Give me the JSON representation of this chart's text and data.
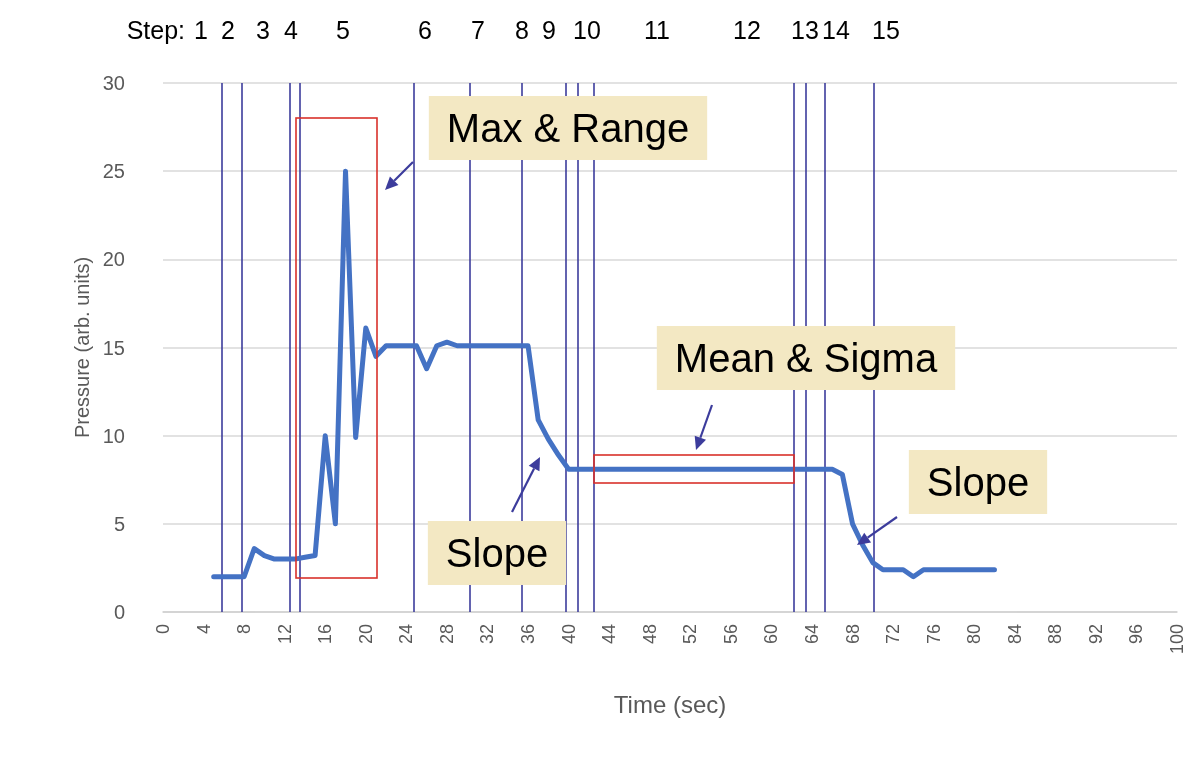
{
  "chart_data": {
    "type": "line",
    "xlabel": "Time (sec)",
    "ylabel": "Pressure (arb. units)",
    "xlim": [
      0,
      100
    ],
    "xticks": [
      0,
      4,
      8,
      12,
      16,
      20,
      24,
      28,
      32,
      36,
      40,
      44,
      48,
      52,
      56,
      60,
      64,
      68,
      72,
      76,
      80,
      84,
      88,
      92,
      96,
      100
    ],
    "ylim": [
      0,
      30
    ],
    "yticks": [
      0,
      5,
      10,
      15,
      20,
      25,
      30
    ],
    "grid": "y",
    "marker": "none",
    "line_style": "solid",
    "series": [
      {
        "color": "#4472c4",
        "x": [
          5,
          6,
          7,
          8,
          9,
          10,
          11,
          12,
          13,
          14,
          15,
          16,
          17,
          18,
          19,
          20,
          21,
          22,
          23,
          24,
          25,
          26,
          27,
          28,
          29,
          30,
          31,
          32,
          33,
          34,
          35,
          36,
          37,
          38,
          39,
          40,
          42,
          46,
          50,
          54,
          58,
          62,
          64,
          66,
          67,
          68,
          69,
          70,
          71,
          72,
          73,
          74,
          75,
          76,
          78,
          80,
          82
        ],
        "values": [
          2,
          2,
          2,
          2,
          3.6,
          3.2,
          3,
          3,
          3,
          3.1,
          3.2,
          10,
          5,
          25,
          9.9,
          16.1,
          14.5,
          15.1,
          15.1,
          15.1,
          15.1,
          13.8,
          15.1,
          15.3,
          15.1,
          15.1,
          15.1,
          15.1,
          15.1,
          15.1,
          15.1,
          15.1,
          10.9,
          9.8,
          8.9,
          8.1,
          8.1,
          8.1,
          8.1,
          8.1,
          8.1,
          8.1,
          8.1,
          8.1,
          7.8,
          5,
          3.8,
          2.8,
          2.4,
          2.4,
          2.4,
          2,
          2.4,
          2.4,
          2.4,
          2.4,
          2.4
        ]
      }
    ],
    "ref_lines": [
      {
        "axis": "x",
        "value": 5.8,
        "color": "#3c3c9c"
      },
      {
        "axis": "x",
        "value": 7.8,
        "color": "#3c3c9c"
      },
      {
        "axis": "x",
        "value": 12.5,
        "color": "#3c3c9c"
      },
      {
        "axis": "x",
        "value": 13.5,
        "color": "#3c3c9c"
      },
      {
        "axis": "x",
        "value": 24.7,
        "color": "#3c3c9c"
      },
      {
        "axis": "x",
        "value": 30.3,
        "color": "#3c3c9c"
      },
      {
        "axis": "x",
        "value": 35.4,
        "color": "#3c3c9c"
      },
      {
        "axis": "x",
        "value": 39.7,
        "color": "#3c3c9c"
      },
      {
        "axis": "x",
        "value": 40.9,
        "color": "#3c3c9c"
      },
      {
        "axis": "x",
        "value": 42.5,
        "color": "#3c3c9c"
      },
      {
        "axis": "x",
        "value": 62.2,
        "color": "#3c3c9c"
      },
      {
        "axis": "x",
        "value": 63.4,
        "color": "#3c3c9c"
      },
      {
        "axis": "x",
        "value": 65.3,
        "color": "#3c3c9c"
      },
      {
        "axis": "x",
        "value": 70.1,
        "color": "#3c3c9c"
      }
    ],
    "annotations": [
      "Step:",
      "1",
      "2",
      "3",
      "4",
      "5",
      "6",
      "7",
      "8",
      "9",
      "10",
      "11",
      "12",
      "13",
      "14",
      "15",
      "Max & Range",
      "Mean & Sigma",
      "Slope",
      "Slope"
    ]
  }
}
